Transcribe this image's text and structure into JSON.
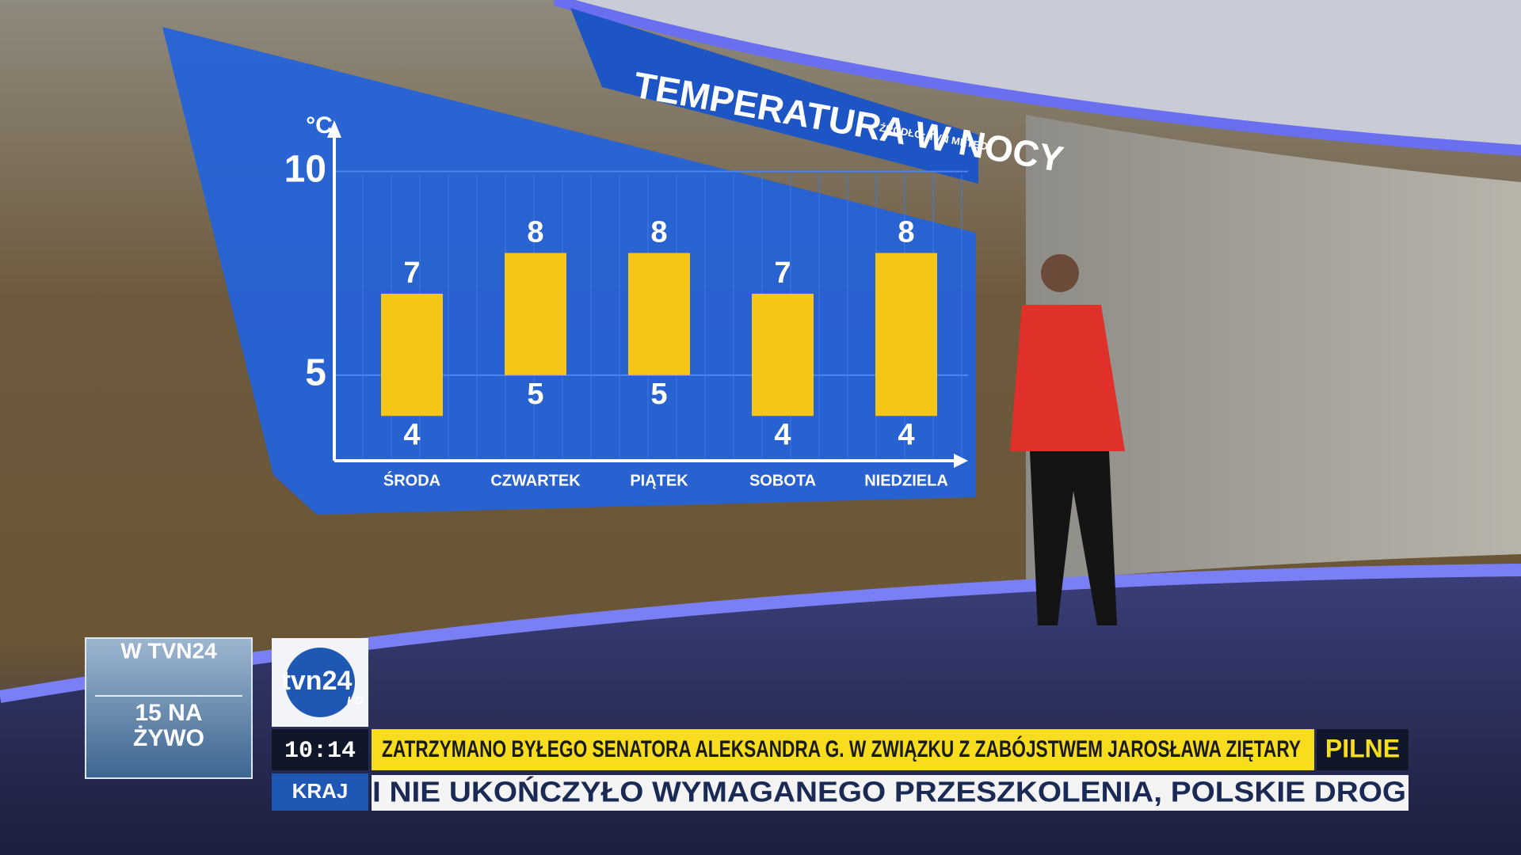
{
  "chart_data": {
    "type": "range_bar",
    "title": "TEMPERATURA W NOCY",
    "source": "ŹRÓDŁO: TVN METEO",
    "y_label": "°C",
    "categories": [
      "ŚRODA",
      "CZWARTEK",
      "PIĄTEK",
      "SOBOTA",
      "NIEDZIELA"
    ],
    "low": [
      4,
      5,
      5,
      4,
      4
    ],
    "high": [
      7,
      8,
      8,
      7,
      8
    ],
    "color": "#f5c518",
    "ylim": [
      2.9,
      11.1
    ],
    "yticks": [
      5,
      10
    ],
    "grid": true
  },
  "side_box": {
    "title": "W TVN24",
    "text": "15 NA ŻYWO"
  },
  "logo": {
    "name": "tvn24",
    "badge": "HD"
  },
  "ticker": {
    "time": "10:14",
    "section": "KRAJ",
    "headline": "ZATRZYMANO BYŁEGO SENATORA ALEKSANDRA G. W ZWIĄZKU Z ZABÓJSTWEM JAROSŁAWA ZIĘTARY",
    "flag": "PILNE",
    "crawl": "I NIE UKOŃCZYŁO WYMAGANEGO PRZESZKOLENIA, POLSKIE DROG"
  }
}
